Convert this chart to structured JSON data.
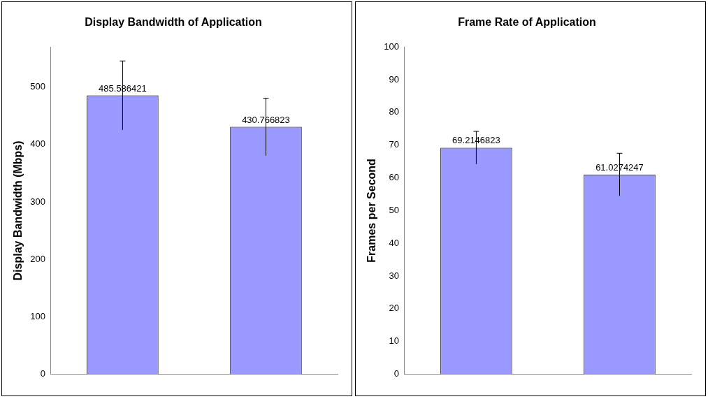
{
  "chart_data": [
    {
      "type": "bar",
      "title": "Display Bandwidth of Application",
      "ylabel": "Display Bandwidth (Mbps)",
      "categories": [
        null,
        null
      ],
      "values": [
        485.586421,
        430.766823
      ],
      "errors": [
        60,
        50
      ],
      "color": "#9999ff",
      "ylim": [
        0,
        570
      ],
      "yticks": [
        0,
        100,
        200,
        300,
        400,
        500
      ],
      "data_labels": true,
      "grid": false,
      "legend": false
    },
    {
      "type": "bar",
      "title": "Frame Rate of Application",
      "ylabel": "Frames per Second",
      "categories": [
        null,
        null
      ],
      "values": [
        69.2146823,
        61.0274247
      ],
      "errors": [
        5,
        6.5
      ],
      "color": "#9999ff",
      "ylim": [
        0,
        100
      ],
      "yticks": [
        0,
        10,
        20,
        30,
        40,
        50,
        60,
        70,
        80,
        90,
        100
      ],
      "data_labels": true,
      "grid": false,
      "legend": false
    }
  ]
}
